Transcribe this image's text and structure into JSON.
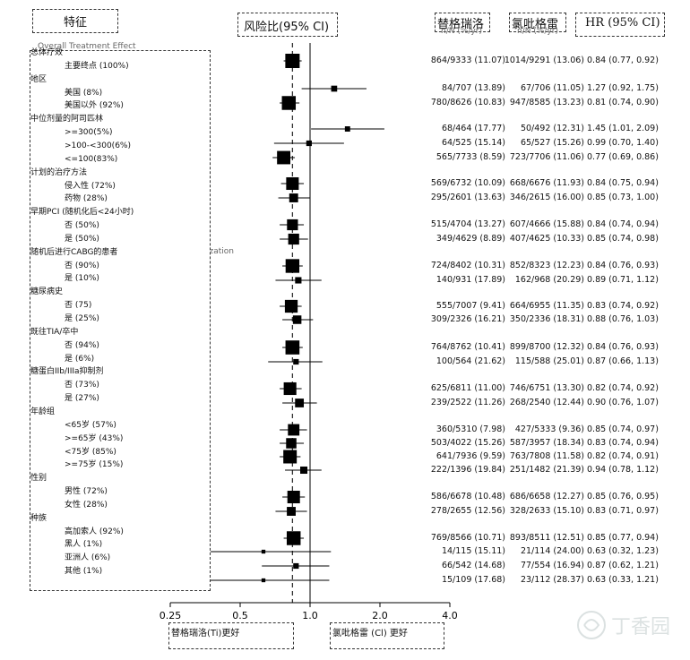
{
  "header": {
    "feature": "特征",
    "hr_ci": "风险比(95% CI)",
    "ticagrelor": "替格瑞洛",
    "clopidogrel": "氯吡格雷",
    "hr_col": "HR (95% CI)",
    "sub_ticagrelor": "n/N (%/yr)",
    "sub_clopidogrel": "n/N (%/yr)"
  },
  "ghost_text": {
    "overall": "Overall Treatment Effect",
    "ization": "ization"
  },
  "footer": {
    "left": "替格瑞洛(Ti)更好",
    "right": "氯吡格雷 (Cl) 更好"
  },
  "watermark": "丁香园",
  "features": [
    {
      "label": "总体疗效",
      "indent": 0
    },
    {
      "label": "主要终点 (100%)",
      "indent": 1
    },
    {
      "label": "地区",
      "indent": 0
    },
    {
      "label": "美国 (8%)",
      "indent": 1
    },
    {
      "label": "美国以外 (92%)",
      "indent": 1
    },
    {
      "label": "中位剂量的阿司匹林",
      "indent": 0
    },
    {
      "label": ">=300(5%)",
      "indent": 1
    },
    {
      "label": ">100-<300(6%)",
      "indent": 1
    },
    {
      "label": "<=100(83%)",
      "indent": 1
    },
    {
      "label": "计划的治疗方法",
      "indent": 0
    },
    {
      "label": "侵入性 (72%)",
      "indent": 1
    },
    {
      "label": "药物 (28%)",
      "indent": 1
    },
    {
      "label": "早期PCI (随机化后<24小时)",
      "indent": 0
    },
    {
      "label": "否 (50%)",
      "indent": 1
    },
    {
      "label": "是 (50%)",
      "indent": 1
    },
    {
      "label": "随机后进行CABG的患者",
      "indent": 0
    },
    {
      "label": "否 (90%)",
      "indent": 1
    },
    {
      "label": "是 (10%)",
      "indent": 1
    },
    {
      "label": "糖尿病史",
      "indent": 0
    },
    {
      "label": "否 (75)",
      "indent": 1
    },
    {
      "label": "是 (25%)",
      "indent": 1
    },
    {
      "label": "既往TIA/卒中",
      "indent": 0
    },
    {
      "label": "否 (94%)",
      "indent": 1
    },
    {
      "label": "是 (6%)",
      "indent": 1
    },
    {
      "label": "糖蛋白IIb/IIIa抑制剂",
      "indent": 0
    },
    {
      "label": "否 (73%)",
      "indent": 1
    },
    {
      "label": "是 (27%)",
      "indent": 1
    },
    {
      "label": "年龄组",
      "indent": 0
    },
    {
      "label": "<65岁 (57%)",
      "indent": 1
    },
    {
      "label": ">=65岁 (43%)",
      "indent": 1
    },
    {
      "label": "<75岁 (85%)",
      "indent": 1
    },
    {
      "label": ">=75岁 (15%)",
      "indent": 1
    },
    {
      "label": "性别",
      "indent": 0
    },
    {
      "label": "男性 (72%)",
      "indent": 1
    },
    {
      "label": "女性 (28%)",
      "indent": 1
    },
    {
      "label": "种族",
      "indent": 0
    },
    {
      "label": "高加索人 (92%)",
      "indent": 1
    },
    {
      "label": "黑人 (1%)",
      "indent": 1
    },
    {
      "label": "亚洲人 (6%)",
      "indent": 1
    },
    {
      "label": "其他 (1%)",
      "indent": 1
    }
  ],
  "chart_data": {
    "type": "forest",
    "x_scale": "log",
    "xlim": [
      0.25,
      4.0
    ],
    "xticks": [
      "0.25",
      "0.5",
      "1.0",
      "2.0",
      "4.0"
    ],
    "reference_line": 1.0,
    "overall_line": 0.84,
    "rows": [
      {
        "ti": "864/9333 (11.07)",
        "cl": "1014/9291 (13.06)",
        "hr_text": "0.84 (0.77, 0.92)",
        "hr": 0.84,
        "lo": 0.77,
        "hi": 0.92,
        "weight": 1.0
      },
      {
        "ti": "84/707 (13.89)",
        "cl": "67/706 (11.05)",
        "hr_text": "1.27 (0.92, 1.75)",
        "hr": 1.27,
        "lo": 0.92,
        "hi": 1.75,
        "weight": 0.08
      },
      {
        "ti": "780/8626 (10.83)",
        "cl": "947/8585 (13.23)",
        "hr_text": "0.81 (0.74, 0.90)",
        "hr": 0.81,
        "lo": 0.74,
        "hi": 0.9,
        "weight": 0.92
      },
      {
        "ti": "68/464 (17.77)",
        "cl": "50/492 (12.31)",
        "hr_text": "1.45 (1.01, 2.09)",
        "hr": 1.45,
        "lo": 1.01,
        "hi": 2.09,
        "weight": 0.05
      },
      {
        "ti": "64/525 (15.14)",
        "cl": "65/527 (15.26)",
        "hr_text": "0.99 (0.70, 1.40)",
        "hr": 0.99,
        "lo": 0.7,
        "hi": 1.4,
        "weight": 0.06
      },
      {
        "ti": "565/7733 (8.59)",
        "cl": "723/7706 (11.06)",
        "hr_text": "0.77 (0.69, 0.86)",
        "hr": 0.77,
        "lo": 0.69,
        "hi": 0.86,
        "weight": 0.83
      },
      {
        "ti": "569/6732 (10.09)",
        "cl": "668/6676 (11.93)",
        "hr_text": "0.84 (0.75, 0.94)",
        "hr": 0.84,
        "lo": 0.75,
        "hi": 0.94,
        "weight": 0.72
      },
      {
        "ti": "295/2601 (13.63)",
        "cl": "346/2615 (16.00)",
        "hr_text": "0.85 (0.73, 1.00)",
        "hr": 0.85,
        "lo": 0.73,
        "hi": 1.0,
        "weight": 0.28
      },
      {
        "ti": "515/4704 (13.27)",
        "cl": "607/4666 (15.88)",
        "hr_text": "0.84 (0.74, 0.94)",
        "hr": 0.84,
        "lo": 0.74,
        "hi": 0.94,
        "weight": 0.5
      },
      {
        "ti": "349/4629 (8.89)",
        "cl": "407/4625 (10.33)",
        "hr_text": "0.85 (0.74, 0.98)",
        "hr": 0.85,
        "lo": 0.74,
        "hi": 0.98,
        "weight": 0.5
      },
      {
        "ti": "724/8402 (10.31)",
        "cl": "852/8323 (12.23)",
        "hr_text": "0.84 (0.76, 0.93)",
        "hr": 0.84,
        "lo": 0.76,
        "hi": 0.93,
        "weight": 0.9
      },
      {
        "ti": "140/931 (17.89)",
        "cl": "162/968 (20.29)",
        "hr_text": "0.89 (0.71, 1.12)",
        "hr": 0.89,
        "lo": 0.71,
        "hi": 1.12,
        "weight": 0.1
      },
      {
        "ti": "555/7007 (9.41)",
        "cl": "664/6955 (11.35)",
        "hr_text": "0.83 (0.74, 0.92)",
        "hr": 0.83,
        "lo": 0.74,
        "hi": 0.92,
        "weight": 0.75
      },
      {
        "ti": "309/2326 (16.21)",
        "cl": "350/2336 (18.31)",
        "hr_text": "0.88 (0.76, 1.03)",
        "hr": 0.88,
        "lo": 0.76,
        "hi": 1.03,
        "weight": 0.25
      },
      {
        "ti": "764/8762 (10.41)",
        "cl": "899/8700 (12.32)",
        "hr_text": "0.84 (0.76, 0.93)",
        "hr": 0.84,
        "lo": 0.76,
        "hi": 0.93,
        "weight": 0.94
      },
      {
        "ti": "100/564 (21.62)",
        "cl": "115/588 (25.01)",
        "hr_text": "0.87 (0.66, 1.13)",
        "hr": 0.87,
        "lo": 0.66,
        "hi": 1.13,
        "weight": 0.06
      },
      {
        "ti": "625/6811 (11.00)",
        "cl": "746/6751 (13.30)",
        "hr_text": "0.82 (0.74, 0.92)",
        "hr": 0.82,
        "lo": 0.74,
        "hi": 0.92,
        "weight": 0.73
      },
      {
        "ti": "239/2522 (11.26)",
        "cl": "268/2540 (12.44)",
        "hr_text": "0.90 (0.76, 1.07)",
        "hr": 0.9,
        "lo": 0.76,
        "hi": 1.07,
        "weight": 0.27
      },
      {
        "ti": "360/5310 (7.98)",
        "cl": "427/5333 (9.36)",
        "hr_text": "0.85 (0.74, 0.97)",
        "hr": 0.85,
        "lo": 0.74,
        "hi": 0.97,
        "weight": 0.57
      },
      {
        "ti": "503/4022 (15.26)",
        "cl": "587/3957 (18.34)",
        "hr_text": "0.83 (0.74, 0.94)",
        "hr": 0.83,
        "lo": 0.74,
        "hi": 0.94,
        "weight": 0.43
      },
      {
        "ti": "641/7936 (9.59)",
        "cl": "763/7808 (11.58)",
        "hr_text": "0.82 (0.74, 0.91)",
        "hr": 0.82,
        "lo": 0.74,
        "hi": 0.91,
        "weight": 0.85
      },
      {
        "ti": "222/1396 (19.84)",
        "cl": "251/1482 (21.39)",
        "hr_text": "0.94 (0.78, 1.12)",
        "hr": 0.94,
        "lo": 0.78,
        "hi": 1.12,
        "weight": 0.15
      },
      {
        "ti": "586/6678 (10.48)",
        "cl": "686/6658 (12.27)",
        "hr_text": "0.85 (0.76, 0.95)",
        "hr": 0.85,
        "lo": 0.76,
        "hi": 0.95,
        "weight": 0.72
      },
      {
        "ti": "278/2655 (12.56)",
        "cl": "328/2633 (15.10)",
        "hr_text": "0.83 (0.71, 0.97)",
        "hr": 0.83,
        "lo": 0.71,
        "hi": 0.97,
        "weight": 0.28
      },
      {
        "ti": "769/8566 (10.71)",
        "cl": "893/8511 (12.51)",
        "hr_text": "0.85 (0.77, 0.94)",
        "hr": 0.85,
        "lo": 0.77,
        "hi": 0.94,
        "weight": 0.92
      },
      {
        "ti": "14/115 (15.11)",
        "cl": "21/114 (24.00)",
        "hr_text": "0.63 (0.32, 1.23)",
        "hr": 0.63,
        "lo": 0.32,
        "hi": 1.23,
        "weight": 0.01
      },
      {
        "ti": "66/542 (14.68)",
        "cl": "77/554 (16.94)",
        "hr_text": "0.87 (0.62, 1.21)",
        "hr": 0.87,
        "lo": 0.62,
        "hi": 1.21,
        "weight": 0.06
      },
      {
        "ti": "15/109 (17.68)",
        "cl": "23/112 (28.37)",
        "hr_text": "0.63 (0.33, 1.21)",
        "hr": 0.63,
        "lo": 0.33,
        "hi": 1.21,
        "weight": 0.01
      }
    ]
  }
}
